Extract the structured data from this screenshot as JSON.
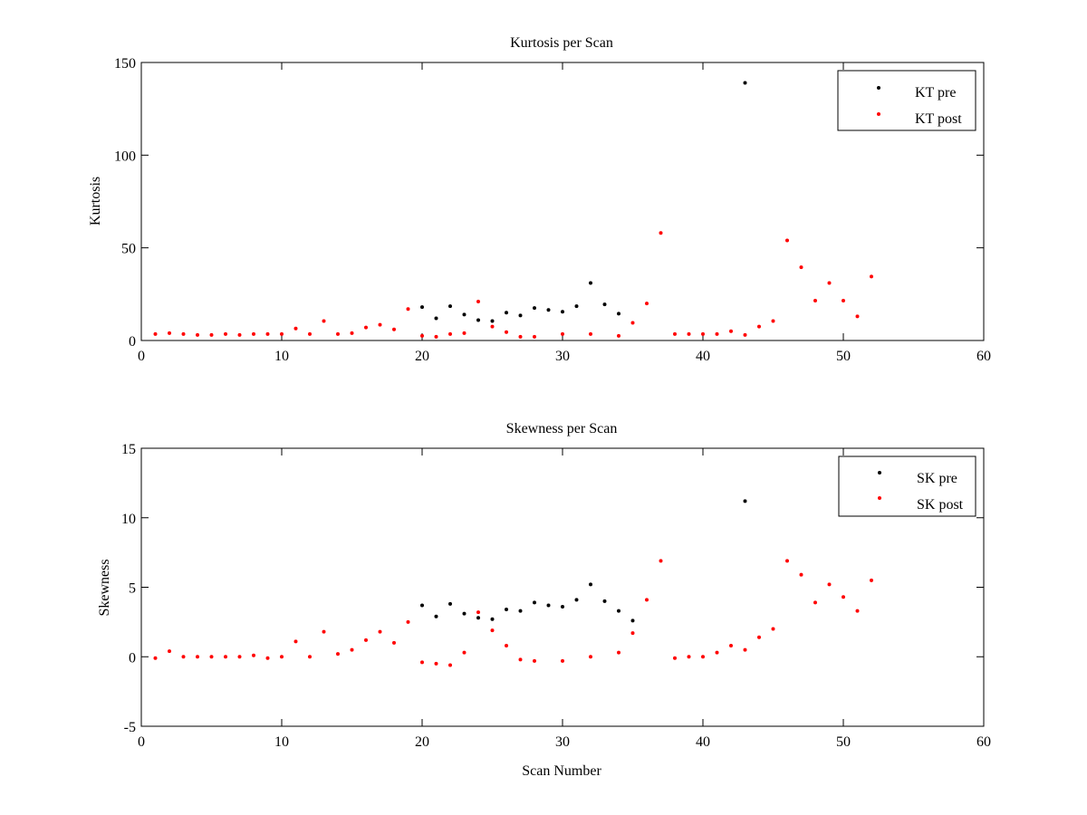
{
  "chart_data": [
    {
      "type": "scatter",
      "title": "Kurtosis per Scan",
      "xlabel": "",
      "ylabel": "Kurtosis",
      "xlim": [
        0,
        60
      ],
      "ylim": [
        0,
        150
      ],
      "xticks": [
        0,
        10,
        20,
        30,
        40,
        50,
        60
      ],
      "yticks": [
        0,
        50,
        100,
        150
      ],
      "grid": false,
      "legend_position": "top-right",
      "series": [
        {
          "name": "KT pre",
          "color": "#000000",
          "x": [
            20,
            21,
            22,
            23,
            24,
            25,
            26,
            27,
            28,
            29,
            30,
            31,
            32,
            33,
            34,
            43
          ],
          "y": [
            18,
            12,
            18.5,
            14,
            11,
            10.5,
            15,
            13.5,
            17.5,
            16.5,
            15.5,
            18.5,
            31,
            19.5,
            14.5,
            139
          ]
        },
        {
          "name": "KT post",
          "color": "#ff0000",
          "x": [
            1,
            2,
            3,
            4,
            5,
            6,
            7,
            8,
            9,
            10,
            11,
            12,
            13,
            14,
            15,
            16,
            17,
            18,
            19,
            20,
            21,
            22,
            23,
            24,
            25,
            26,
            27,
            28,
            30,
            32,
            34,
            35,
            36,
            37,
            38,
            39,
            40,
            41,
            42,
            43,
            44,
            45,
            46,
            47,
            48,
            49,
            50,
            51,
            52
          ],
          "y": [
            3.5,
            4,
            3.5,
            3,
            3,
            3.5,
            3,
            3.5,
            3.5,
            3.5,
            6.5,
            3.5,
            10.5,
            3.5,
            4,
            7,
            8.5,
            6,
            17,
            2.5,
            2,
            3.5,
            4,
            21,
            7.5,
            4.5,
            2,
            2,
            3.5,
            3.5,
            2.5,
            9.5,
            20,
            58,
            3.5,
            3.5,
            3.5,
            3.5,
            5,
            3,
            7.5,
            10.5,
            54,
            39.5,
            21.5,
            31,
            21.5,
            13,
            34.5
          ]
        }
      ]
    },
    {
      "type": "scatter",
      "title": "Skewness per Scan",
      "xlabel": "Scan Number",
      "ylabel": "Skewness",
      "xlim": [
        0,
        60
      ],
      "ylim": [
        -5,
        15
      ],
      "xticks": [
        0,
        10,
        20,
        30,
        40,
        50,
        60
      ],
      "yticks": [
        -5,
        0,
        5,
        10,
        15
      ],
      "grid": false,
      "legend_position": "top-right",
      "series": [
        {
          "name": "SK pre",
          "color": "#000000",
          "x": [
            20,
            21,
            22,
            23,
            24,
            25,
            26,
            27,
            28,
            29,
            30,
            31,
            32,
            33,
            34,
            35,
            43
          ],
          "y": [
            3.7,
            2.9,
            3.8,
            3.1,
            2.8,
            2.7,
            3.4,
            3.3,
            3.9,
            3.7,
            3.6,
            4.1,
            5.2,
            4.0,
            3.3,
            2.6,
            11.2
          ]
        },
        {
          "name": "SK post",
          "color": "#ff0000",
          "x": [
            1,
            2,
            3,
            4,
            5,
            6,
            7,
            8,
            9,
            10,
            11,
            12,
            13,
            14,
            15,
            16,
            17,
            18,
            19,
            20,
            21,
            22,
            23,
            24,
            25,
            26,
            27,
            28,
            30,
            32,
            34,
            35,
            36,
            37,
            38,
            39,
            40,
            41,
            42,
            43,
            44,
            45,
            46,
            47,
            48,
            49,
            50,
            51,
            52
          ],
          "y": [
            -0.1,
            0.4,
            0,
            0,
            0,
            0,
            0,
            0.1,
            -0.1,
            0,
            1.1,
            0,
            1.8,
            0.2,
            0.5,
            1.2,
            1.8,
            1.0,
            2.5,
            -0.4,
            -0.5,
            -0.6,
            0.3,
            3.2,
            1.9,
            0.8,
            -0.2,
            -0.3,
            -0.3,
            0,
            0.3,
            1.7,
            4.1,
            6.9,
            -0.1,
            0,
            0,
            0.3,
            0.8,
            0.5,
            1.4,
            2.0,
            6.9,
            5.9,
            3.9,
            5.2,
            4.3,
            3.3,
            5.5
          ]
        }
      ]
    }
  ]
}
